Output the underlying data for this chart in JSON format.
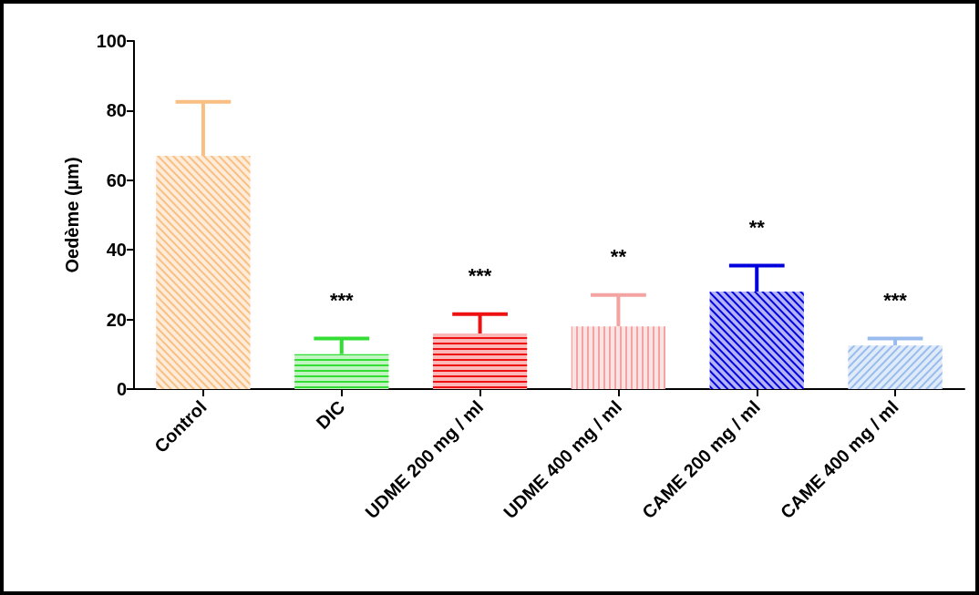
{
  "chart_data": {
    "type": "bar",
    "ylabel": "Oedème (µm)",
    "categories": [
      "Control",
      "DIC",
      "UDME 200 mg / ml",
      "UDME 400 mg / ml",
      "CAME 200 mg / ml",
      "CAME 400 mg / ml"
    ],
    "values": [
      67,
      10,
      16,
      18,
      28,
      12.5
    ],
    "colors": [
      "#f9bf82",
      "#33dd33",
      "#ee1111",
      "#f4a3a3",
      "#0000dd",
      "#99bbee"
    ],
    "errors": [
      15.5,
      4.5,
      5.5,
      9,
      7.5,
      2
    ],
    "ylim": [
      0,
      100
    ],
    "yticks": [
      0,
      20,
      40,
      60,
      80,
      100
    ],
    "grid": false,
    "annotations": [
      "***",
      "***",
      "**",
      "**",
      "***"
    ]
  }
}
